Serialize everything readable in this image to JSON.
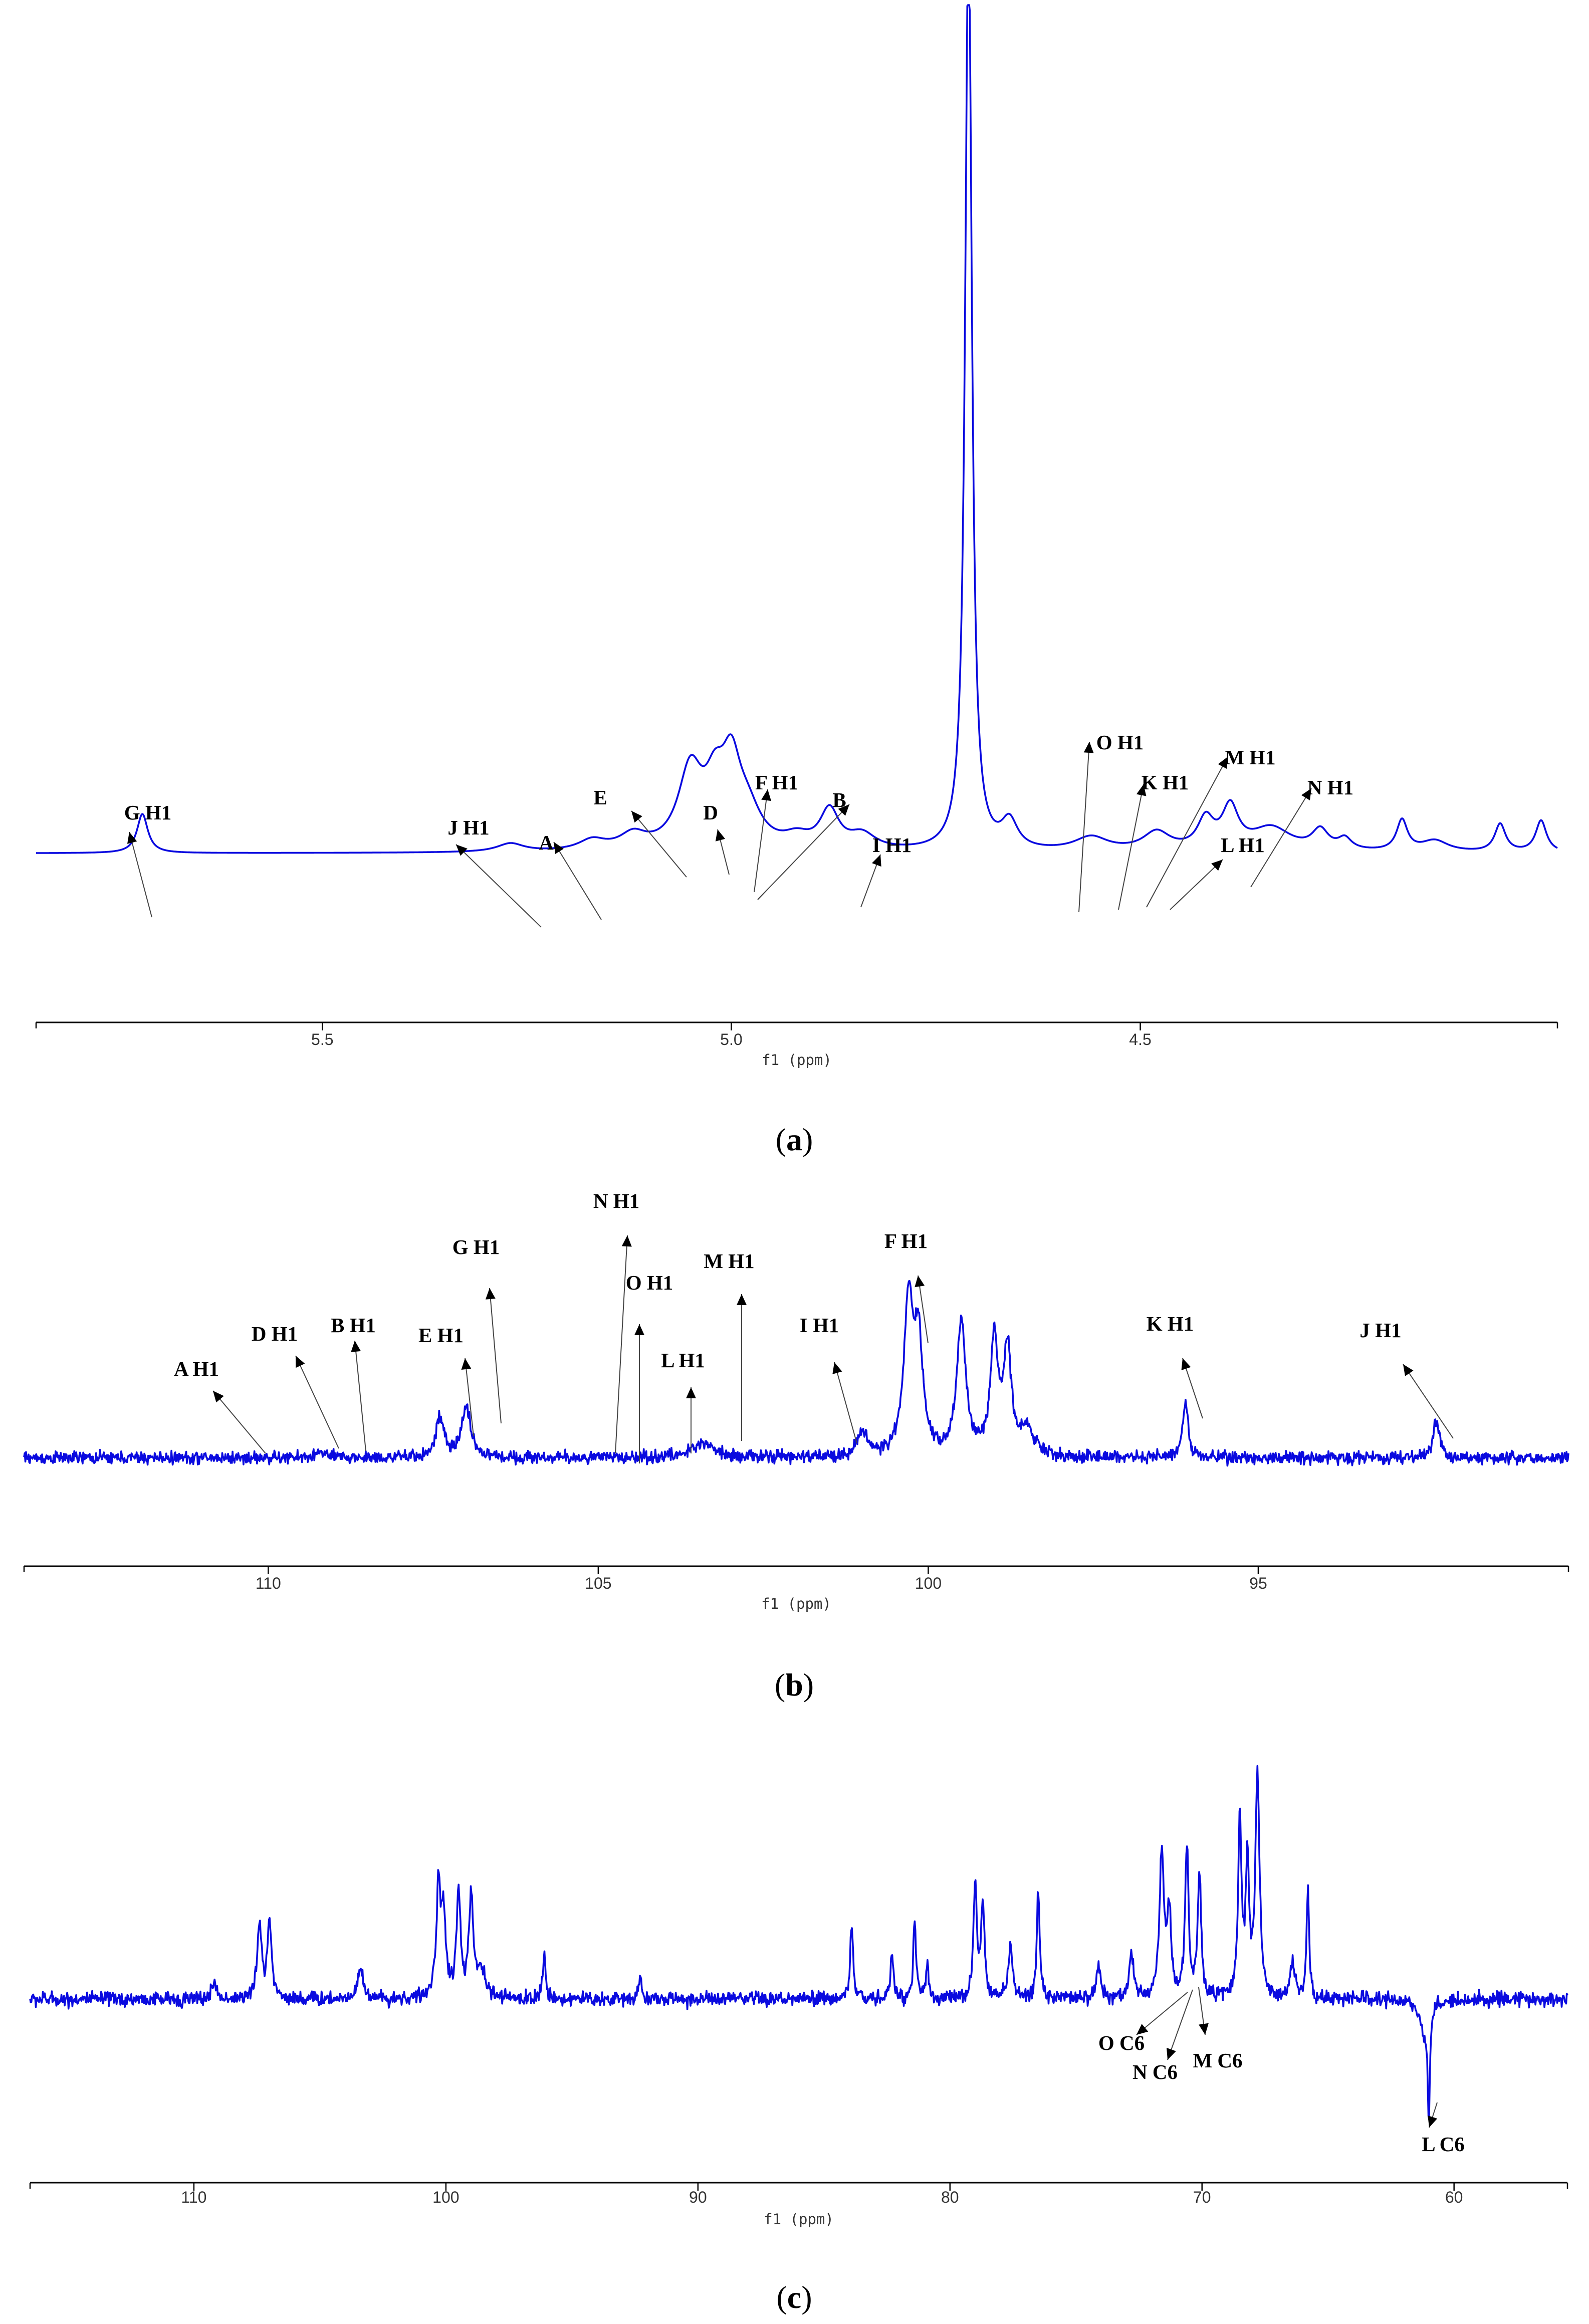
{
  "captions": {
    "a": {
      "open": "(",
      "letter": "a",
      "close": ")"
    },
    "b": {
      "open": "(",
      "letter": "b",
      "close": ")"
    },
    "c": {
      "open": "(",
      "letter": "c",
      "close": ")"
    }
  },
  "chart_data": [
    {
      "id": "a",
      "type": "line",
      "xlabel": "f1 (ppm)",
      "xlim": [
        5.85,
        3.99
      ],
      "ylim": [
        -0.9,
        9.0
      ],
      "xticks": [
        5.5,
        5.0,
        4.5
      ],
      "xtick_labels": [
        "5.5",
        "5.0",
        "4.5"
      ],
      "baseline": 0.0,
      "peaks": [
        {
          "x": 5.72,
          "y": 0.42,
          "w": 0.008
        },
        {
          "x": 5.27,
          "y": 0.09,
          "w": 0.02
        },
        {
          "x": 5.17,
          "y": 0.11,
          "w": 0.02
        },
        {
          "x": 5.12,
          "y": 0.16,
          "w": 0.02
        },
        {
          "x": 5.05,
          "y": 0.83,
          "w": 0.018
        },
        {
          "x": 5.02,
          "y": 0.55,
          "w": 0.015
        },
        {
          "x": 5.0,
          "y": 0.78,
          "w": 0.014
        },
        {
          "x": 4.98,
          "y": 0.35,
          "w": 0.02
        },
        {
          "x": 4.92,
          "y": 0.12,
          "w": 0.02
        },
        {
          "x": 4.88,
          "y": 0.41,
          "w": 0.014
        },
        {
          "x": 4.84,
          "y": 0.16,
          "w": 0.02
        },
        {
          "x": 4.71,
          "y": 9.9,
          "w": 0.005
        },
        {
          "x": 4.66,
          "y": 0.3,
          "w": 0.012
        },
        {
          "x": 4.56,
          "y": 0.15,
          "w": 0.025
        },
        {
          "x": 4.48,
          "y": 0.2,
          "w": 0.02
        },
        {
          "x": 4.42,
          "y": 0.32,
          "w": 0.012
        },
        {
          "x": 4.39,
          "y": 0.44,
          "w": 0.012
        },
        {
          "x": 4.34,
          "y": 0.25,
          "w": 0.03
        },
        {
          "x": 4.28,
          "y": 0.21,
          "w": 0.012
        },
        {
          "x": 4.25,
          "y": 0.12,
          "w": 0.01
        },
        {
          "x": 4.18,
          "y": 0.33,
          "w": 0.008
        },
        {
          "x": 4.14,
          "y": 0.12,
          "w": 0.02
        },
        {
          "x": 4.06,
          "y": 0.3,
          "w": 0.008
        },
        {
          "x": 4.01,
          "y": 0.34,
          "w": 0.008
        }
      ],
      "annotations": [
        {
          "label": "G H1",
          "peak_x": 5.72
        },
        {
          "label": "J H1",
          "peak_x": 5.27
        },
        {
          "label": "A",
          "peak_x": 5.17
        },
        {
          "label": "E",
          "peak_x": 5.07
        },
        {
          "label": "D",
          "peak_x": 5.03
        },
        {
          "label": "F H1",
          "peak_x": 4.99
        },
        {
          "label": "B",
          "peak_x": 4.98
        },
        {
          "label": "I H1",
          "peak_x": 4.86
        },
        {
          "label": "O H1",
          "peak_x": 4.55
        },
        {
          "label": "K H1",
          "peak_x": 4.51
        },
        {
          "label": "M H1",
          "peak_x": 4.47
        },
        {
          "label": "L H1",
          "peak_x": 4.44
        },
        {
          "label": "N H1",
          "peak_x": 4.39
        }
      ]
    },
    {
      "id": "b",
      "type": "line",
      "xlabel": "f1 (ppm)",
      "xlim": [
        113.7,
        90.3
      ],
      "ylim": [
        -0.35,
        2.0
      ],
      "xticks": [
        110,
        105,
        100,
        95
      ],
      "xtick_labels": [
        "110",
        "105",
        "100",
        "95"
      ],
      "baseline": 0.0,
      "noise": 0.045,
      "peaks": [
        {
          "x": 109.2,
          "y": 0.04,
          "w": 0.1
        },
        {
          "x": 107.4,
          "y": 0.29,
          "w": 0.07
        },
        {
          "x": 107.0,
          "y": 0.38,
          "w": 0.08
        },
        {
          "x": 103.4,
          "y": 0.11,
          "w": 0.2
        },
        {
          "x": 101.0,
          "y": 0.2,
          "w": 0.08
        },
        {
          "x": 100.3,
          "y": 1.1,
          "w": 0.08
        },
        {
          "x": 100.15,
          "y": 0.8,
          "w": 0.08
        },
        {
          "x": 99.5,
          "y": 0.98,
          "w": 0.08
        },
        {
          "x": 99.0,
          "y": 0.82,
          "w": 0.07
        },
        {
          "x": 98.8,
          "y": 0.76,
          "w": 0.07
        },
        {
          "x": 98.5,
          "y": 0.2,
          "w": 0.12
        },
        {
          "x": 96.1,
          "y": 0.41,
          "w": 0.05
        },
        {
          "x": 92.3,
          "y": 0.27,
          "w": 0.06
        }
      ],
      "annotations": [
        {
          "label": "A H1",
          "peak_x": 110.6
        },
        {
          "label": "D H1",
          "peak_x": 109.6
        },
        {
          "label": "B H1",
          "peak_x": 109.1
        },
        {
          "label": "E H1",
          "peak_x": 107.4
        },
        {
          "label": "G H1",
          "peak_x": 107.0
        },
        {
          "label": "N H1",
          "peak_x": 105.2
        },
        {
          "label": "O H1",
          "peak_x": 104.8
        },
        {
          "label": "L H1",
          "peak_x": 104.1
        },
        {
          "label": "M H1",
          "peak_x": 103.3
        },
        {
          "label": "I H1",
          "peak_x": 101.3
        },
        {
          "label": "F H1",
          "peak_x": 100.3
        },
        {
          "label": "K H1",
          "peak_x": 96.1
        },
        {
          "label": "J H1",
          "peak_x": 92.3
        }
      ]
    },
    {
      "id": "c",
      "type": "line",
      "xlabel": "f1 (ppm)",
      "xlim": [
        116.5,
        55.5
      ],
      "ylim": [
        -1.45,
        2.6
      ],
      "xticks": [
        110,
        100,
        90,
        80,
        70,
        60
      ],
      "xtick_labels": [
        "110",
        "100",
        "90",
        "80",
        "70",
        "60"
      ],
      "baseline": 0.0,
      "noise": 0.07,
      "peaks": [
        {
          "x": 109.2,
          "y": 0.17,
          "w": 0.1
        },
        {
          "x": 107.4,
          "y": 0.72,
          "w": 0.1
        },
        {
          "x": 107.0,
          "y": 0.75,
          "w": 0.1
        },
        {
          "x": 103.4,
          "y": 0.28,
          "w": 0.15
        },
        {
          "x": 100.3,
          "y": 1.0,
          "w": 0.1
        },
        {
          "x": 100.1,
          "y": 0.8,
          "w": 0.1
        },
        {
          "x": 99.5,
          "y": 0.98,
          "w": 0.1
        },
        {
          "x": 99.0,
          "y": 0.95,
          "w": 0.1
        },
        {
          "x": 98.6,
          "y": 0.25,
          "w": 0.2
        },
        {
          "x": 96.1,
          "y": 0.42,
          "w": 0.07
        },
        {
          "x": 92.3,
          "y": 0.24,
          "w": 0.07
        },
        {
          "x": 83.9,
          "y": 0.71,
          "w": 0.07
        },
        {
          "x": 82.3,
          "y": 0.42,
          "w": 0.07
        },
        {
          "x": 81.4,
          "y": 0.74,
          "w": 0.07
        },
        {
          "x": 80.9,
          "y": 0.32,
          "w": 0.07
        },
        {
          "x": 79.0,
          "y": 1.08,
          "w": 0.08
        },
        {
          "x": 78.7,
          "y": 0.92,
          "w": 0.08
        },
        {
          "x": 77.6,
          "y": 0.5,
          "w": 0.1
        },
        {
          "x": 76.5,
          "y": 1.07,
          "w": 0.07
        },
        {
          "x": 74.1,
          "y": 0.32,
          "w": 0.1
        },
        {
          "x": 72.8,
          "y": 0.45,
          "w": 0.1
        },
        {
          "x": 71.6,
          "y": 1.42,
          "w": 0.1
        },
        {
          "x": 71.3,
          "y": 0.8,
          "w": 0.1
        },
        {
          "x": 70.6,
          "y": 1.48,
          "w": 0.08
        },
        {
          "x": 70.1,
          "y": 1.2,
          "w": 0.08
        },
        {
          "x": 68.5,
          "y": 1.7,
          "w": 0.08
        },
        {
          "x": 68.2,
          "y": 1.25,
          "w": 0.08
        },
        {
          "x": 67.8,
          "y": 2.12,
          "w": 0.1
        },
        {
          "x": 66.4,
          "y": 0.35,
          "w": 0.12
        },
        {
          "x": 65.8,
          "y": 1.05,
          "w": 0.06
        },
        {
          "x": 61.2,
          "y": -0.32,
          "w": 0.18
        },
        {
          "x": 61.0,
          "y": -1.02,
          "w": 0.05
        }
      ],
      "annotations": [
        {
          "label": "O C6",
          "peak_x": 71.0
        },
        {
          "label": "N C6",
          "peak_x": 70.8
        },
        {
          "label": "M C6",
          "peak_x": 70.2
        },
        {
          "label": "L C6",
          "peak_x": 61.0
        }
      ]
    }
  ]
}
